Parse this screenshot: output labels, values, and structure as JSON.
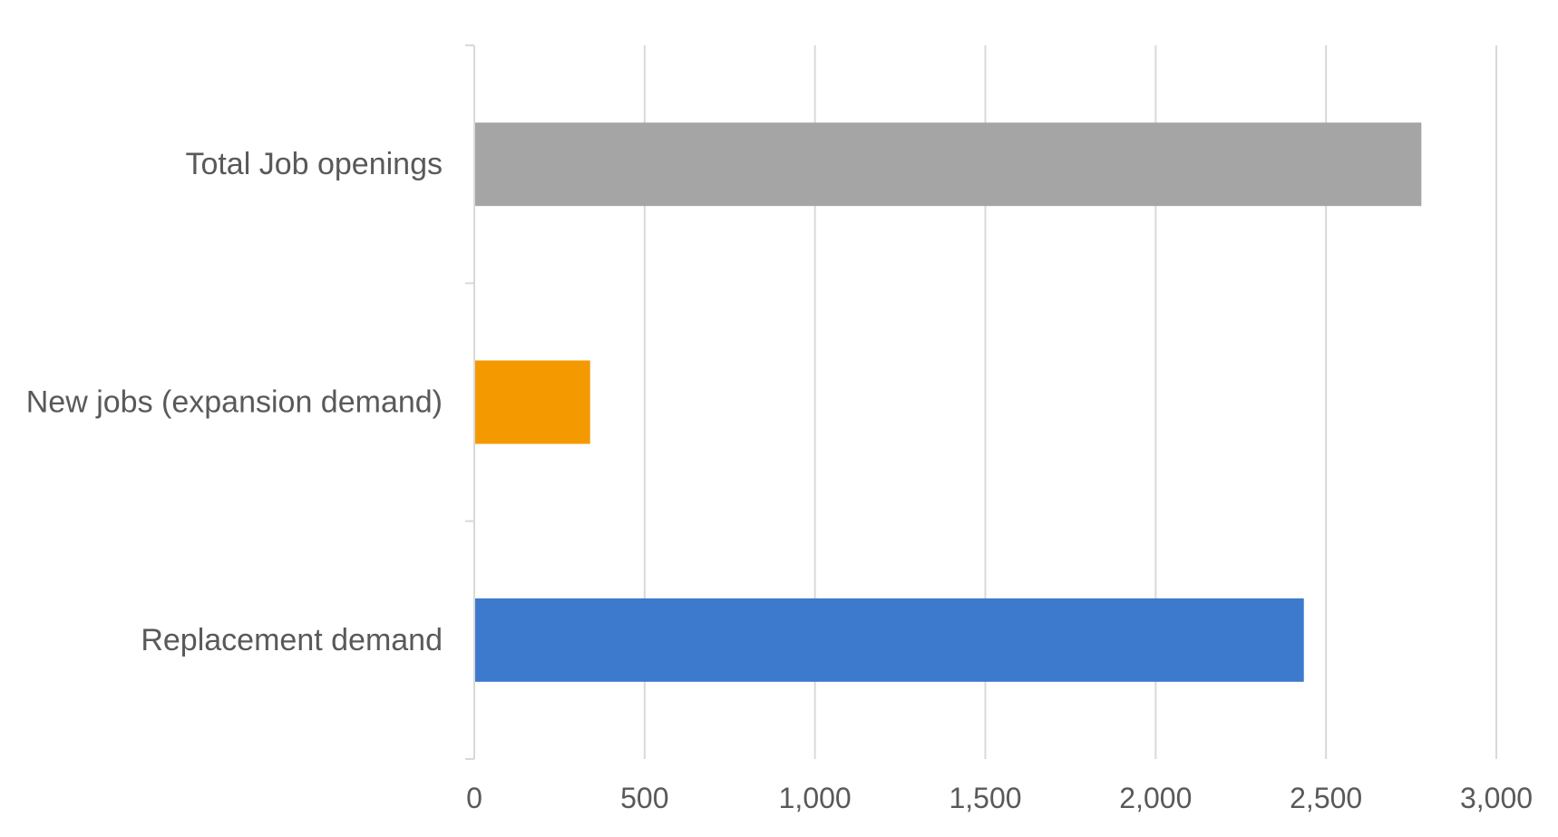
{
  "chart_data": {
    "type": "bar",
    "orientation": "horizontal",
    "title": "",
    "xlabel": "",
    "ylabel": "",
    "categories": [
      "Total Job openings",
      "New jobs (expansion demand)",
      "Replacement demand"
    ],
    "values": [
      2780,
      340,
      2435
    ],
    "colors": [
      "#a5a5a5",
      "#f49a00",
      "#3d79cd"
    ],
    "xlim": [
      0,
      3000
    ],
    "x_ticks": [
      0,
      500,
      1000,
      1500,
      2000,
      2500,
      3000
    ],
    "x_tick_labels": [
      "0",
      "500",
      "1,000",
      "1,500",
      "2,000",
      "2,500",
      "3,000"
    ],
    "grid": "vertical",
    "legend": "none"
  }
}
